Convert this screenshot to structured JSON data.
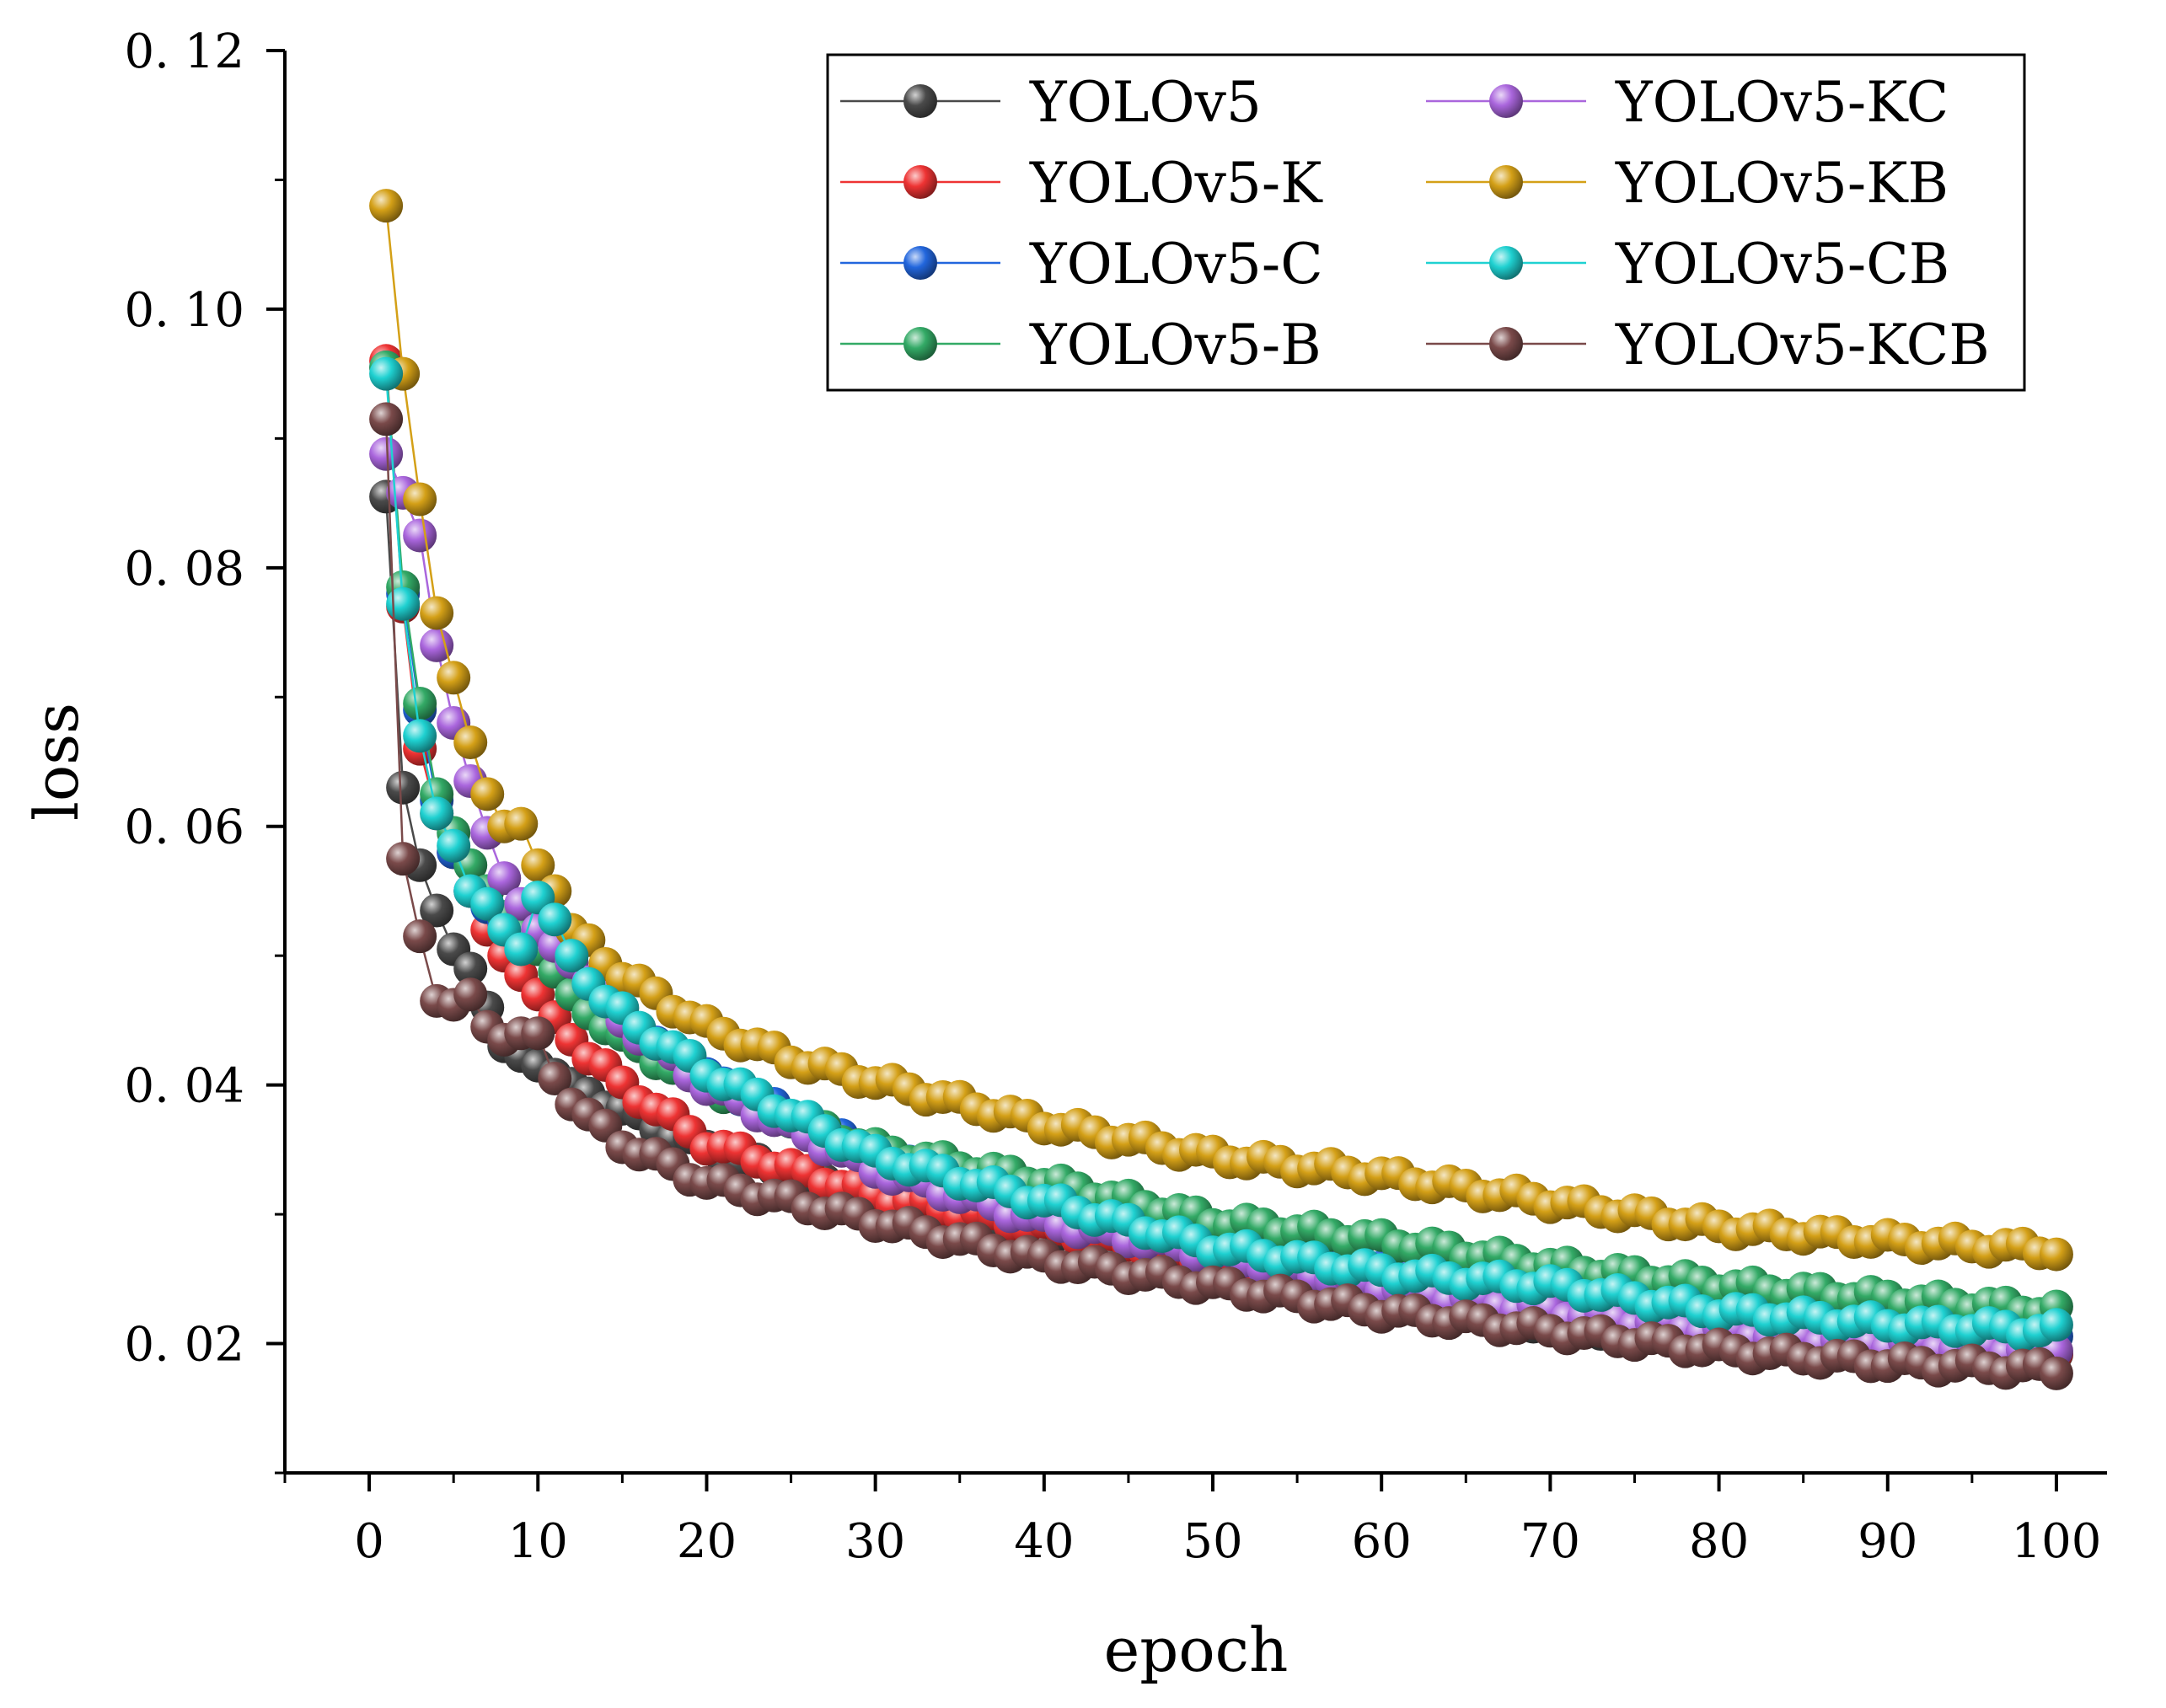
{
  "chart_data": {
    "type": "line",
    "title": "",
    "xlabel": "epoch",
    "ylabel": "loss",
    "xlim": [
      -5,
      103
    ],
    "ylim": [
      0.01,
      0.12
    ],
    "xticks": [
      0,
      10,
      20,
      30,
      40,
      50,
      60,
      70,
      80,
      90,
      100
    ],
    "xtick_labels": [
      "0",
      "10",
      "20",
      "30",
      "40",
      "50",
      "60",
      "70",
      "80",
      "90",
      "100"
    ],
    "yticks": [
      0.02,
      0.04,
      0.06,
      0.08,
      0.1,
      0.12
    ],
    "ytick_labels": [
      "0. 02",
      "0. 04",
      "0. 06",
      "0. 08",
      "0. 10",
      "0. 12"
    ],
    "grid": false,
    "legend_position": "top-right",
    "legend_columns": 2,
    "epochs": [
      1,
      100
    ],
    "series": [
      {
        "name": "YOLOv5",
        "color": "#4a4a4a",
        "anchors": [
          [
            1,
            0.0855
          ],
          [
            2,
            0.063
          ],
          [
            3,
            0.057
          ],
          [
            4,
            0.0535
          ],
          [
            5,
            0.0505
          ],
          [
            6,
            0.049
          ],
          [
            7,
            0.046
          ],
          [
            8,
            0.043
          ],
          [
            10,
            0.0415
          ],
          [
            15,
            0.038
          ],
          [
            20,
            0.035
          ],
          [
            30,
            0.031
          ],
          [
            40,
            0.0285
          ],
          [
            50,
            0.026
          ],
          [
            60,
            0.0235
          ],
          [
            70,
            0.0215
          ],
          [
            80,
            0.0205
          ],
          [
            90,
            0.0195
          ],
          [
            100,
            0.019
          ]
        ]
      },
      {
        "name": "YOLOv5-K",
        "color": "#ee3333",
        "anchors": [
          [
            1,
            0.096
          ],
          [
            2,
            0.077
          ],
          [
            3,
            0.066
          ],
          [
            4,
            0.061
          ],
          [
            5,
            0.058
          ],
          [
            6,
            0.055
          ],
          [
            7,
            0.052
          ],
          [
            8,
            0.05
          ],
          [
            10,
            0.047
          ],
          [
            12,
            0.0435
          ],
          [
            15,
            0.04
          ],
          [
            20,
            0.0355
          ],
          [
            30,
            0.0315
          ],
          [
            40,
            0.029
          ],
          [
            50,
            0.0265
          ],
          [
            60,
            0.024
          ],
          [
            70,
            0.022
          ],
          [
            80,
            0.0205
          ],
          [
            90,
            0.0195
          ],
          [
            100,
            0.019
          ]
        ]
      },
      {
        "name": "YOLOv5-C",
        "color": "#2266dd",
        "anchors": [
          [
            1,
            0.0955
          ],
          [
            2,
            0.078
          ],
          [
            3,
            0.069
          ],
          [
            4,
            0.062
          ],
          [
            5,
            0.058
          ],
          [
            6,
            0.055
          ],
          [
            8,
            0.0525
          ],
          [
            10,
            0.051
          ],
          [
            12,
            0.0485
          ],
          [
            15,
            0.0445
          ],
          [
            20,
            0.0405
          ],
          [
            30,
            0.0345
          ],
          [
            40,
            0.031
          ],
          [
            50,
            0.028
          ],
          [
            60,
            0.026
          ],
          [
            70,
            0.024
          ],
          [
            80,
            0.0225
          ],
          [
            90,
            0.0215
          ],
          [
            100,
            0.021
          ]
        ]
      },
      {
        "name": "YOLOv5-B",
        "color": "#33aa66",
        "anchors": [
          [
            1,
            0.0955
          ],
          [
            2,
            0.0785
          ],
          [
            3,
            0.0695
          ],
          [
            4,
            0.0625
          ],
          [
            5,
            0.0595
          ],
          [
            6,
            0.057
          ],
          [
            8,
            0.053
          ],
          [
            10,
            0.0505
          ],
          [
            12,
            0.047
          ],
          [
            15,
            0.0435
          ],
          [
            20,
            0.04
          ],
          [
            30,
            0.035
          ],
          [
            40,
            0.0325
          ],
          [
            50,
            0.0295
          ],
          [
            60,
            0.028
          ],
          [
            70,
            0.026
          ],
          [
            80,
            0.0245
          ],
          [
            90,
            0.0235
          ],
          [
            100,
            0.0225
          ]
        ]
      },
      {
        "name": "YOLOv5-KC",
        "color": "#aa66dd",
        "anchors": [
          [
            1,
            0.0888
          ],
          [
            2,
            0.0858
          ],
          [
            3,
            0.0825
          ],
          [
            4,
            0.074
          ],
          [
            5,
            0.068
          ],
          [
            6,
            0.0635
          ],
          [
            7,
            0.0595
          ],
          [
            8,
            0.056
          ],
          [
            9,
            0.054
          ],
          [
            10,
            0.052
          ],
          [
            12,
            0.0495
          ],
          [
            15,
            0.045
          ],
          [
            20,
            0.04
          ],
          [
            30,
            0.0335
          ],
          [
            40,
            0.0295
          ],
          [
            50,
            0.027
          ],
          [
            60,
            0.0245
          ],
          [
            70,
            0.0225
          ],
          [
            80,
            0.021
          ],
          [
            90,
            0.02
          ],
          [
            100,
            0.0195
          ]
        ]
      },
      {
        "name": "YOLOv5-KB",
        "color": "#d4a017",
        "anchors": [
          [
            1,
            0.108
          ],
          [
            2,
            0.095
          ],
          [
            3,
            0.0853
          ],
          [
            4,
            0.0765
          ],
          [
            5,
            0.0715
          ],
          [
            6,
            0.0665
          ],
          [
            7,
            0.0625
          ],
          [
            8,
            0.06
          ],
          [
            9,
            0.0602
          ],
          [
            10,
            0.057
          ],
          [
            11,
            0.055
          ],
          [
            12,
            0.052
          ],
          [
            15,
            0.0485
          ],
          [
            20,
            0.0445
          ],
          [
            25,
            0.042
          ],
          [
            30,
            0.0403
          ],
          [
            40,
            0.037
          ],
          [
            50,
            0.0345
          ],
          [
            60,
            0.033
          ],
          [
            70,
            0.031
          ],
          [
            80,
            0.029
          ],
          [
            90,
            0.028
          ],
          [
            100,
            0.0272
          ]
        ]
      },
      {
        "name": "YOLOv5-CB",
        "color": "#1fd1d1",
        "anchors": [
          [
            1,
            0.095
          ],
          [
            2,
            0.0772
          ],
          [
            3,
            0.067
          ],
          [
            4,
            0.061
          ],
          [
            5,
            0.0585
          ],
          [
            6,
            0.055
          ],
          [
            7,
            0.054
          ],
          [
            8,
            0.052
          ],
          [
            9,
            0.0505
          ],
          [
            10,
            0.0545
          ],
          [
            11,
            0.0528
          ],
          [
            12,
            0.05
          ],
          [
            14,
            0.0465
          ],
          [
            16,
            0.0445
          ],
          [
            20,
            0.041
          ],
          [
            30,
            0.0345
          ],
          [
            40,
            0.031
          ],
          [
            50,
            0.0275
          ],
          [
            60,
            0.0255
          ],
          [
            70,
            0.0245
          ],
          [
            80,
            0.0225
          ],
          [
            90,
            0.0215
          ],
          [
            100,
            0.021
          ]
        ]
      },
      {
        "name": "YOLOv5-KCB",
        "color": "#7a4a4a",
        "anchors": [
          [
            1,
            0.0915
          ],
          [
            2,
            0.0575
          ],
          [
            3,
            0.0515
          ],
          [
            4,
            0.0465
          ],
          [
            5,
            0.0462
          ],
          [
            6,
            0.047
          ],
          [
            7,
            0.0445
          ],
          [
            8,
            0.0435
          ],
          [
            9,
            0.044
          ],
          [
            10,
            0.044
          ],
          [
            11,
            0.0405
          ],
          [
            12,
            0.0385
          ],
          [
            15,
            0.0355
          ],
          [
            20,
            0.0325
          ],
          [
            30,
            0.0295
          ],
          [
            40,
            0.0265
          ],
          [
            50,
            0.0245
          ],
          [
            60,
            0.0225
          ],
          [
            70,
            0.021
          ],
          [
            80,
            0.0195
          ],
          [
            90,
            0.0185
          ],
          [
            100,
            0.018
          ]
        ]
      }
    ]
  }
}
